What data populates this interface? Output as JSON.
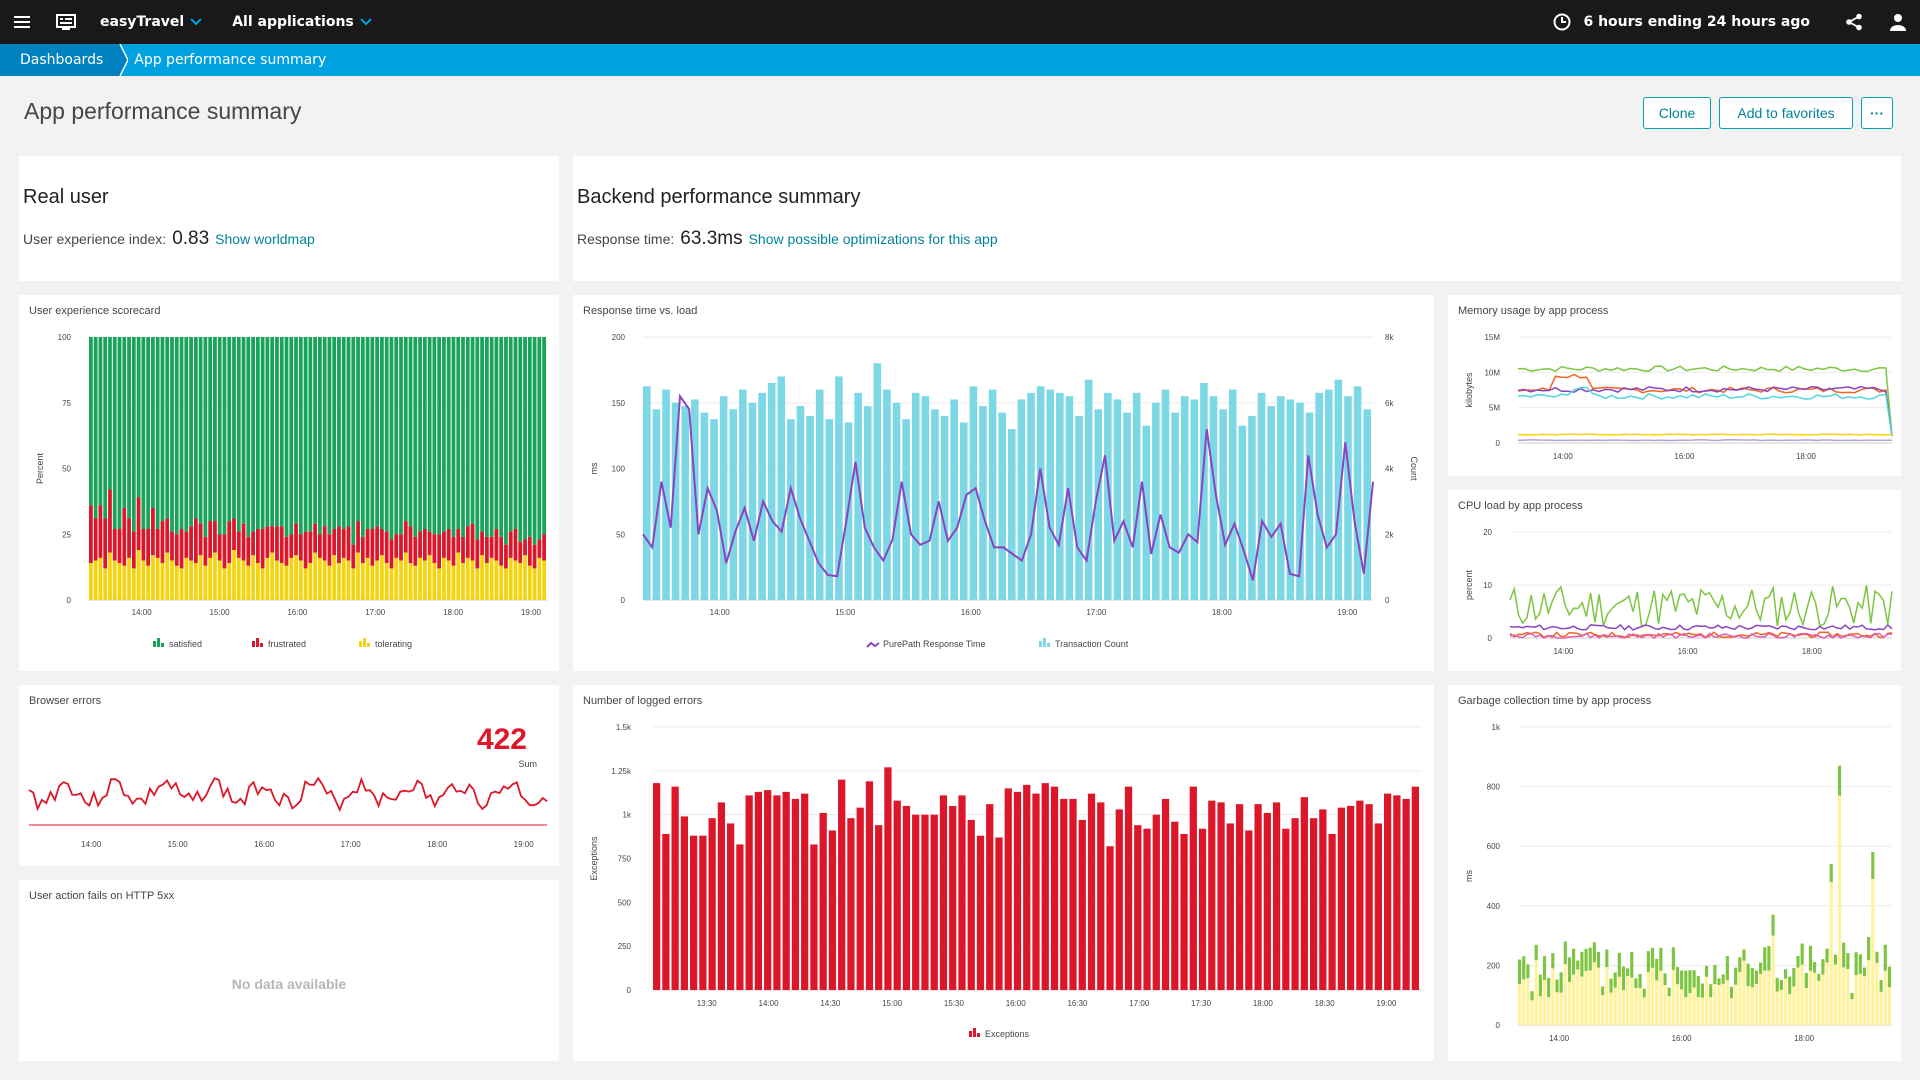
{
  "topbar": {
    "environment": "easyTravel",
    "app_selector": "All applications",
    "timeframe": "6 hours ending 24 hours ago"
  },
  "breadcrumb": {
    "root": "Dashboards",
    "current": "App performance summary"
  },
  "page": {
    "title": "App performance summary"
  },
  "actions": {
    "clone": "Clone",
    "favorites": "Add to favorites",
    "more": "···"
  },
  "real_user": {
    "title": "Real user",
    "label": "User experience index:",
    "value": "0.83",
    "link": "Show worldmap"
  },
  "backend": {
    "title": "Backend performance summary",
    "label": "Response time:",
    "value": "63.3ms",
    "link": "Show possible optimizations for this app"
  },
  "tiles": {
    "scorecard": "User experience scorecard",
    "response": "Response time vs. load",
    "memory": "Memory usage by app process",
    "cpu": "CPU load by app process",
    "browser_errors": "Browser errors",
    "logged_errors": "Number of logged errors",
    "gc": "Garbage collection time by app process",
    "http5xx": "User action fails on HTTP 5xx"
  },
  "browser_errors": {
    "value": "422",
    "sub": "Sum"
  },
  "http5xx": {
    "empty": "No data available"
  },
  "colors": {
    "satisfied": "#1aa35b",
    "frustrated": "#dc172a",
    "tolerating": "#f5d30f",
    "count": "#7dd8e6",
    "response": "#8a44c2",
    "green": "#7dc540",
    "yellow": "#fff29a"
  },
  "chart_data": [
    {
      "id": "scorecard",
      "type": "bar",
      "title": "User experience scorecard",
      "ylabel": "Percent",
      "ylim": [
        0,
        100
      ],
      "yticks": [
        "0",
        "25",
        "50",
        "75",
        "100"
      ],
      "xticks": [
        "14:00",
        "15:00",
        "16:00",
        "17:00",
        "18:00",
        "19:00"
      ],
      "legend": [
        "satisfied",
        "frustrated",
        "tolerating"
      ],
      "series": [
        {
          "name": "tolerating",
          "values": [
            14,
            15,
            16,
            12,
            18,
            15,
            14,
            13,
            16,
            12,
            19,
            15,
            13,
            17,
            16,
            14,
            18,
            15,
            13,
            12,
            16,
            15,
            14,
            17,
            13,
            16,
            18,
            15,
            12,
            14,
            19,
            16,
            15,
            13,
            17,
            14,
            12,
            16,
            18,
            15,
            14,
            13,
            16,
            17,
            15,
            12,
            14,
            18,
            16,
            15,
            13,
            17,
            14,
            16,
            15,
            12,
            18,
            14,
            16,
            13,
            15,
            17,
            14,
            12,
            16,
            15,
            18,
            14,
            13,
            16,
            15,
            17,
            14,
            12,
            16,
            15,
            13,
            18,
            14,
            16,
            15,
            12,
            17,
            14,
            16,
            15,
            13,
            12,
            16,
            15,
            14,
            17,
            13,
            12,
            16,
            15
          ]
        },
        {
          "name": "frustrated",
          "values": [
            22,
            16,
            20,
            19,
            24,
            12,
            13,
            22,
            15,
            14,
            20,
            12,
            14,
            18,
            11,
            16,
            13,
            11,
            12,
            15,
            10,
            13,
            17,
            12,
            11,
            14,
            12,
            10,
            13,
            16,
            12,
            10,
            14,
            11,
            9,
            13,
            15,
            12,
            10,
            13,
            14,
            11,
            9,
            12,
            10,
            14,
            12,
            11,
            9,
            13,
            12,
            10,
            14,
            11,
            13,
            9,
            12,
            10,
            11,
            14,
            13,
            10,
            12,
            11,
            9,
            10,
            12,
            14,
            11,
            10,
            12,
            9,
            11,
            13,
            10,
            12,
            11,
            9,
            10,
            12,
            14,
            11,
            9,
            10,
            8,
            12,
            11,
            9,
            10,
            12,
            8,
            6,
            11,
            9,
            7,
            10
          ]
        }
      ],
      "note": "satisfied fills the remainder to 100"
    },
    {
      "id": "response",
      "type": "bar+line",
      "title": "Response time vs. load",
      "ylabel_left": "ms",
      "ylabel_right": "Count",
      "ylim_left": [
        0,
        200
      ],
      "ylim_right": [
        0,
        8000
      ],
      "yticks_left": [
        "0",
        "50",
        "100",
        "150",
        "200"
      ],
      "yticks_right": [
        "0",
        "2k",
        "4k",
        "6k",
        "8k"
      ],
      "xticks": [
        "14:00",
        "15:00",
        "16:00",
        "17:00",
        "18:00",
        "19:00"
      ],
      "legend": [
        "PurePath Response Time",
        "Transaction Count"
      ],
      "transaction_count": [
        6500,
        5800,
        6400,
        6000,
        5900,
        6100,
        5700,
        5500,
        6200,
        5800,
        6400,
        6000,
        6300,
        6600,
        6800,
        5500,
        5900,
        5600,
        6400,
        5500,
        6800,
        5400,
        6300,
        5900,
        7200,
        6400,
        6000,
        5500,
        6300,
        6200,
        5800,
        5600,
        6100,
        5400,
        6500,
        5900,
        6400,
        5700,
        5200,
        6100,
        6300,
        6500,
        6400,
        6300,
        6200,
        5600,
        6700,
        5800,
        6300,
        6100,
        5700,
        6300,
        5300,
        6000,
        6400,
        5700,
        6200,
        6100,
        6600,
        6200,
        5800,
        6400,
        5300,
        5600,
        6300,
        5900,
        6200,
        6100,
        6000,
        5700,
        6300,
        6400,
        6700,
        6200,
        6500,
        5800
      ],
      "response_time": [
        50,
        40,
        90,
        55,
        155,
        145,
        50,
        85,
        68,
        28,
        52,
        70,
        45,
        75,
        60,
        52,
        85,
        62,
        45,
        28,
        19,
        18,
        60,
        105,
        55,
        40,
        30,
        46,
        90,
        50,
        42,
        45,
        75,
        45,
        55,
        80,
        85,
        60,
        40,
        40,
        35,
        30,
        50,
        100,
        55,
        42,
        85,
        40,
        30,
        75,
        110,
        45,
        60,
        40,
        90,
        35,
        65,
        40,
        36,
        50,
        44,
        130,
        80,
        42,
        58,
        38,
        15,
        60,
        48,
        58,
        20,
        18,
        110,
        65,
        40,
        50,
        120,
        60,
        20,
        90
      ]
    },
    {
      "id": "memory",
      "type": "line",
      "title": "Memory usage by app process",
      "ylabel": "kilobytes",
      "yticks": [
        "0",
        "5M",
        "10M",
        "15M"
      ],
      "xticks": [
        "14:00",
        "16:00",
        "18:00"
      ],
      "series": [
        {
          "name": "green",
          "color": "#7dc540",
          "level": 10.5
        },
        {
          "name": "orange",
          "color": "#ef651f",
          "level": 7.5
        },
        {
          "name": "purple",
          "color": "#8a44c2",
          "level": 7.6
        },
        {
          "name": "blue",
          "color": "#4fd5e0",
          "level": 6.6
        },
        {
          "name": "yellow",
          "color": "#f5d30f",
          "level": 1.2
        },
        {
          "name": "lavender",
          "color": "#b7a0e0",
          "level": 0.4
        }
      ]
    },
    {
      "id": "cpu",
      "type": "line",
      "title": "CPU load by app process",
      "ylabel": "percent",
      "yticks": [
        "0",
        "10",
        "20"
      ],
      "xticks": [
        "14:00",
        "16:00",
        "18:00"
      ],
      "series": [
        {
          "name": "green",
          "color": "#7dc540",
          "level": 6
        },
        {
          "name": "purple",
          "color": "#8a44c2",
          "level": 2
        },
        {
          "name": "orange",
          "color": "#ef651f",
          "level": 0.6
        },
        {
          "name": "pink",
          "color": "#e35cb2",
          "level": 0.4
        }
      ]
    },
    {
      "id": "browser_errors",
      "type": "line",
      "title": "Browser errors",
      "xticks": [
        "14:00",
        "15:00",
        "16:00",
        "17:00",
        "18:00",
        "19:00"
      ]
    },
    {
      "id": "logged_errors",
      "type": "bar",
      "title": "Number of logged errors",
      "ylabel": "Exceptions",
      "ylim": [
        0,
        1500
      ],
      "yticks": [
        "0",
        "250",
        "500",
        "750",
        "1k",
        "1.25k",
        "1.5k"
      ],
      "xticks": [
        "13:30",
        "14:00",
        "14:30",
        "15:00",
        "15:30",
        "16:00",
        "16:30",
        "17:00",
        "17:30",
        "18:00",
        "18:30",
        "19:00"
      ],
      "legend": [
        "Exceptions"
      ],
      "values": [
        1180,
        890,
        1160,
        990,
        880,
        880,
        980,
        1070,
        950,
        830,
        1110,
        1130,
        1140,
        1110,
        1130,
        1090,
        1120,
        830,
        1010,
        910,
        1200,
        980,
        1040,
        1190,
        940,
        1270,
        1080,
        1050,
        1000,
        1000,
        1000,
        1110,
        1050,
        1110,
        970,
        880,
        1060,
        870,
        1150,
        1130,
        1170,
        1120,
        1180,
        1160,
        1090,
        1090,
        970,
        1120,
        1070,
        820,
        1030,
        1160,
        940,
        920,
        1000,
        1090,
        960,
        890,
        1160,
        920,
        1080,
        1070,
        950,
        1060,
        910,
        1060,
        1010,
        1070,
        920,
        980,
        1100,
        980,
        1030,
        890,
        1040,
        1050,
        1080,
        1060,
        950,
        1120,
        1110,
        1090,
        1160
      ]
    },
    {
      "id": "gc",
      "type": "bar",
      "title": "Garbage collection time by app process",
      "ylabel": "ms",
      "ylim": [
        0,
        1000
      ],
      "yticks": [
        "0",
        "200",
        "400",
        "600",
        "800",
        "1k"
      ],
      "xticks": [
        "14:00",
        "16:00",
        "18:00"
      ]
    },
    {
      "id": "http5xx",
      "type": "table",
      "title": "User action fails on HTTP 5xx"
    }
  ]
}
